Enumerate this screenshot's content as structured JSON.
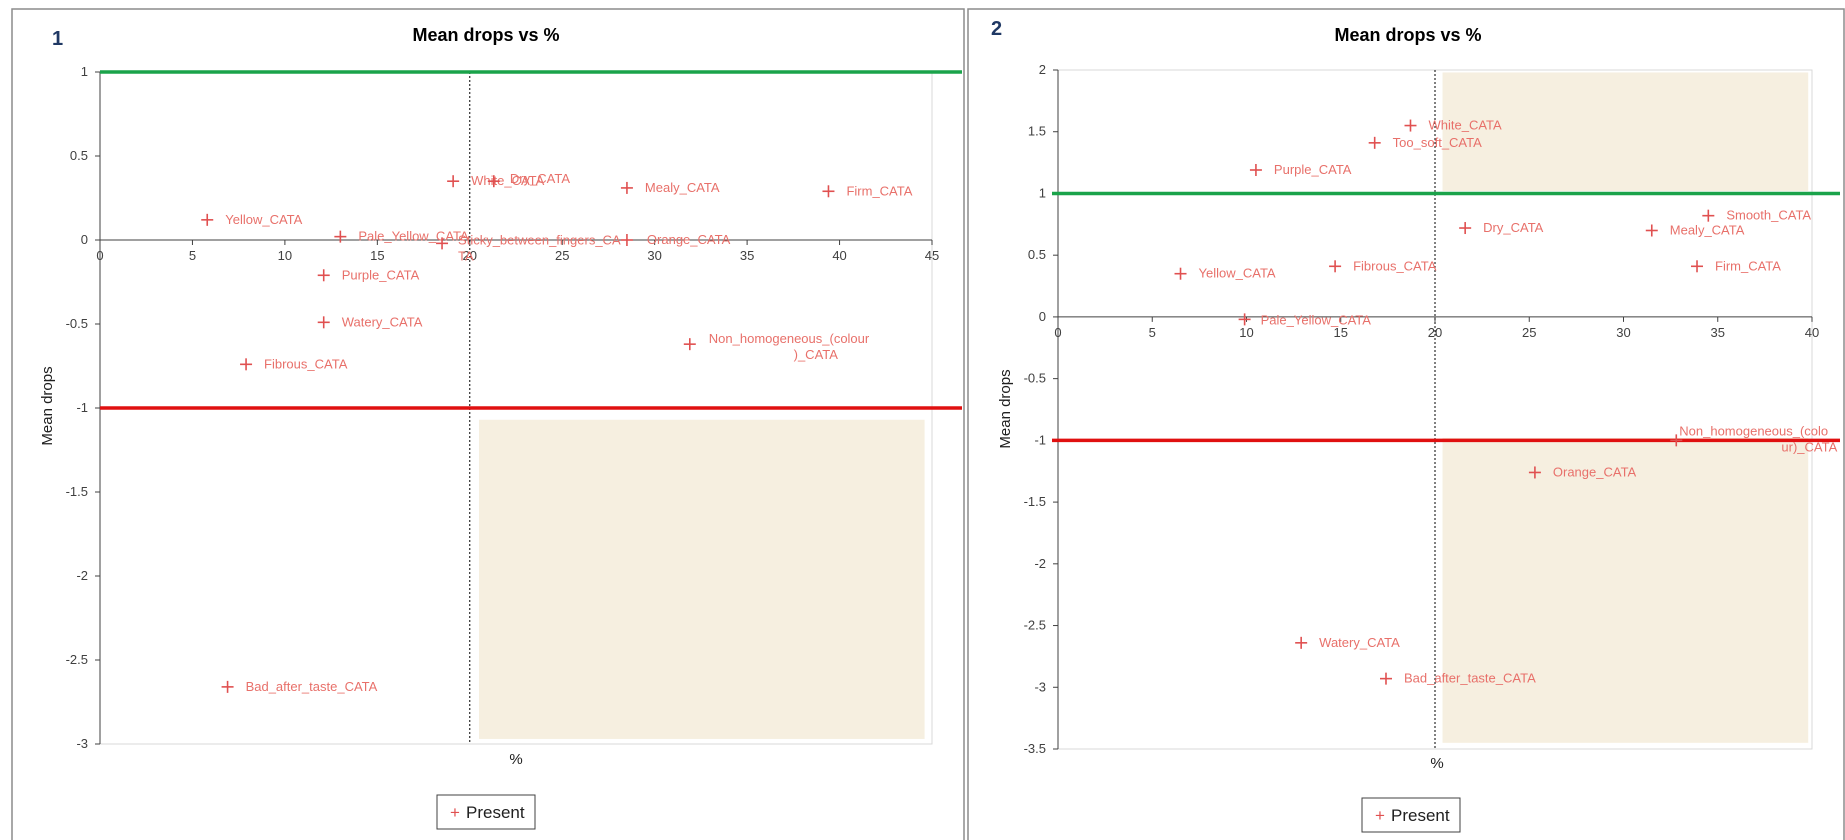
{
  "colors": {
    "marker": "#e05050",
    "label": "#e8706a",
    "upper_line": "#1aa34a",
    "lower_line": "#e01010",
    "shade": "#f6efe0",
    "axis": "#404040"
  },
  "chart_data": [
    {
      "panel": "1",
      "type": "scatter",
      "title": "Mean drops vs %",
      "xlabel": "%",
      "ylabel": "Mean drops",
      "xlim": [
        0,
        45
      ],
      "ylim": [
        -3,
        1
      ],
      "xticks": [
        "0",
        "5",
        "10",
        "15",
        "20",
        "25",
        "30",
        "35",
        "40",
        "45"
      ],
      "yticks": [
        "1",
        "0.5",
        "0",
        "-0.5",
        "-1",
        "-1.5",
        "-2",
        "-2.5",
        "-3"
      ],
      "reference_lines": {
        "upper": 1,
        "lower": -1,
        "vertical": 20
      },
      "legend": "Present",
      "points": [
        {
          "label": "Yellow_CATA",
          "x": 5.8,
          "y": 0.12
        },
        {
          "label": "Pale_Yellow_CATA",
          "x": 13.0,
          "y": 0.02
        },
        {
          "label": "White_CATA",
          "x": 19.1,
          "y": 0.35
        },
        {
          "label": "Dry_CATA",
          "x": 21.3,
          "y": 0.35
        },
        {
          "label": "Sticky_between_fingers_CATA",
          "x": 18.5,
          "y": -0.02
        },
        {
          "label": "Mealy_CATA",
          "x": 28.5,
          "y": 0.31
        },
        {
          "label": "Orange_CATA",
          "x": 28.5,
          "y": 0.0
        },
        {
          "label": "Firm_CATA",
          "x": 39.4,
          "y": 0.29
        },
        {
          "label": "Purple_CATA",
          "x": 12.1,
          "y": -0.21
        },
        {
          "label": "Watery_CATA",
          "x": 12.1,
          "y": -0.49
        },
        {
          "label": "Fibrous_CATA",
          "x": 7.9,
          "y": -0.74
        },
        {
          "label": "Non_homogeneous_(colour)_CATA",
          "x": 31.9,
          "y": -0.62
        },
        {
          "label": "Bad_after_taste_CATA",
          "x": 6.9,
          "y": -2.66
        }
      ]
    },
    {
      "panel": "2",
      "type": "scatter",
      "title": "Mean drops vs %",
      "xlabel": "%",
      "ylabel": "Mean drops",
      "xlim": [
        0,
        40
      ],
      "ylim": [
        -3.5,
        2
      ],
      "xticks": [
        "0",
        "5",
        "10",
        "15",
        "20",
        "25",
        "30",
        "35",
        "40"
      ],
      "yticks": [
        "2",
        "1.5",
        "1",
        "0.5",
        "0",
        "-0.5",
        "-1",
        "-1.5",
        "-2",
        "-2.5",
        "-3",
        "-3.5"
      ],
      "reference_lines": {
        "upper": 1,
        "lower": -1,
        "vertical": 20
      },
      "legend": "Present",
      "points": [
        {
          "label": "White_CATA",
          "x": 18.7,
          "y": 1.55
        },
        {
          "label": "Too_soft_CATA",
          "x": 16.8,
          "y": 1.41
        },
        {
          "label": "Purple_CATA",
          "x": 10.5,
          "y": 1.19
        },
        {
          "label": "Smooth_CATA",
          "x": 34.5,
          "y": 0.82
        },
        {
          "label": "Dry_CATA",
          "x": 21.6,
          "y": 0.72
        },
        {
          "label": "Mealy_CATA",
          "x": 31.5,
          "y": 0.7
        },
        {
          "label": "Fibrous_CATA",
          "x": 14.7,
          "y": 0.41
        },
        {
          "label": "Firm_CATA",
          "x": 33.9,
          "y": 0.41
        },
        {
          "label": "Yellow_CATA",
          "x": 6.5,
          "y": 0.35
        },
        {
          "label": "Pale_Yellow_CATA",
          "x": 9.9,
          "y": -0.02
        },
        {
          "label": "Non_homogeneous_(colour)_CATA",
          "x": 32.8,
          "y": -1.0
        },
        {
          "label": "Orange_CATA",
          "x": 25.3,
          "y": -1.26
        },
        {
          "label": "Watery_CATA",
          "x": 12.9,
          "y": -2.64
        },
        {
          "label": "Bad_after_taste_CATA",
          "x": 17.4,
          "y": -2.93
        }
      ]
    }
  ]
}
